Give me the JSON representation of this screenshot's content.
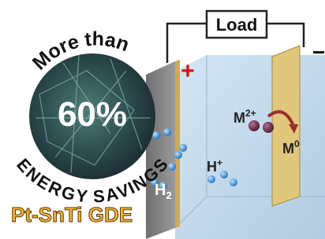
{
  "badge": {
    "top_text": "More than",
    "value": "60%",
    "bottom_text": "ENERGY SAVINGS"
  },
  "circuit": {
    "load": "Load",
    "anode_sign": "+",
    "cathode_sign": "−"
  },
  "species": {
    "metal_ion": {
      "symbol": "M",
      "charge": "2+"
    },
    "metal": {
      "symbol": "M",
      "charge": "0"
    },
    "proton": {
      "symbol": "H",
      "charge": "+"
    },
    "hydrogen": {
      "symbol": "H",
      "subscript": "2"
    }
  },
  "label": "Pt-SnTi GDE"
}
